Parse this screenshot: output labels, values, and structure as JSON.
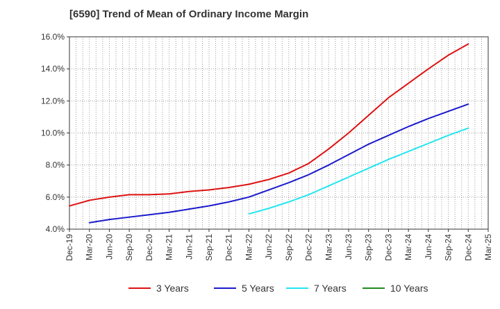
{
  "chart_data": {
    "type": "line",
    "title": "[6590]  Trend of Mean of Ordinary Income Margin",
    "xlabel": "",
    "ylabel": "",
    "x": [
      "Dec-19",
      "Mar-20",
      "Jun-20",
      "Sep-20",
      "Dec-20",
      "Mar-21",
      "Jun-21",
      "Sep-21",
      "Dec-21",
      "Mar-22",
      "Jun-22",
      "Sep-22",
      "Dec-22",
      "Mar-23",
      "Jun-23",
      "Sep-23",
      "Dec-23",
      "Mar-24",
      "Jun-24",
      "Sep-24",
      "Dec-24",
      "Mar-25"
    ],
    "y_ticks": [
      "4.0%",
      "6.0%",
      "8.0%",
      "10.0%",
      "12.0%",
      "14.0%",
      "16.0%"
    ],
    "ylim": [
      4.0,
      16.0
    ],
    "y_unit": "%",
    "grid": true,
    "legend_position": "bottom",
    "series": [
      {
        "name": "3 Years",
        "color": "#dd1111",
        "values": [
          5.45,
          5.8,
          6.0,
          6.15,
          6.15,
          6.2,
          6.35,
          6.45,
          6.6,
          6.8,
          7.1,
          7.5,
          8.1,
          9.0,
          10.0,
          11.1,
          12.2,
          13.1,
          14.0,
          14.85,
          15.55,
          null
        ]
      },
      {
        "name": "5 Years",
        "color": "#1a1acc",
        "values": [
          null,
          4.4,
          4.6,
          4.75,
          4.9,
          5.05,
          5.25,
          5.45,
          5.7,
          6.0,
          6.45,
          6.9,
          7.4,
          8.0,
          8.65,
          9.3,
          9.85,
          10.4,
          10.9,
          11.35,
          11.8,
          null
        ]
      },
      {
        "name": "7 Years",
        "color": "#22e5ee",
        "values": [
          null,
          null,
          null,
          null,
          null,
          null,
          null,
          null,
          null,
          4.95,
          5.3,
          5.7,
          6.15,
          6.7,
          7.25,
          7.8,
          8.35,
          8.85,
          9.35,
          9.85,
          10.3,
          null
        ]
      },
      {
        "name": "10 Years",
        "color": "#1f8a1f",
        "values": [
          null,
          null,
          null,
          null,
          null,
          null,
          null,
          null,
          null,
          null,
          null,
          null,
          null,
          null,
          null,
          null,
          null,
          null,
          null,
          null,
          null,
          null
        ]
      }
    ]
  }
}
